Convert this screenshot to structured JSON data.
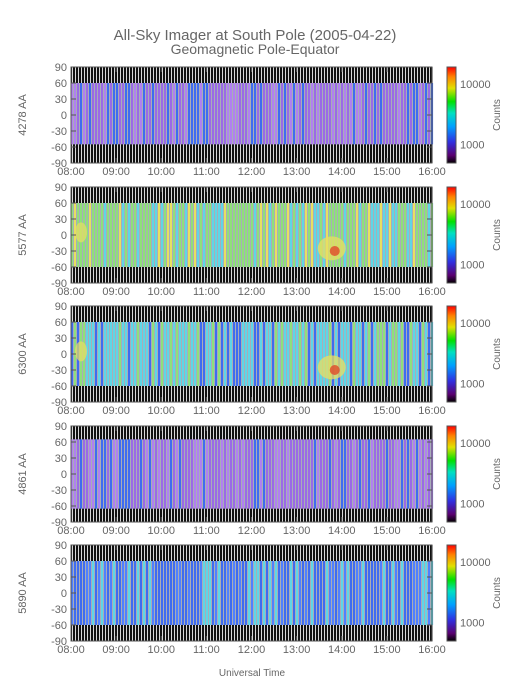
{
  "title": "All-Sky Imager at South Pole (2005-04-22)",
  "subtitle": "Geomagnetic Pole-Equator",
  "xlabel": "Universal Time",
  "colorbar_label": "Counts",
  "colorbar_ticks": [
    "10000",
    "1000"
  ],
  "colors": {
    "text": "#666666",
    "frame": "#555555",
    "dark": "#111111",
    "purple": "#9a6ae6",
    "blue": "#3f6cf0",
    "cyan": "#5fd6e6",
    "green": "#8fe07a",
    "yellow": "#e8e060",
    "red": "#e04a2a"
  },
  "chart_data": [
    {
      "type": "heatmap",
      "ylabel": "4278 AA",
      "x_ticks": [
        "08:00",
        "09:00",
        "10:00",
        "11:00",
        "12:00",
        "13:00",
        "14:00",
        "15:00",
        "16:00"
      ],
      "y_ticks": [
        90,
        60,
        30,
        0,
        -30,
        -60,
        -90
      ],
      "x_range": [
        "08:00",
        "16:00"
      ],
      "y_range": [
        -90,
        90
      ],
      "data_band": [
        -55,
        60
      ],
      "dominant_color": "purple"
    },
    {
      "type": "heatmap",
      "ylabel": "5577 AA",
      "x_ticks": [
        "08:00",
        "09:00",
        "10:00",
        "11:00",
        "12:00",
        "13:00",
        "14:00",
        "15:00",
        "16:00"
      ],
      "y_ticks": [
        90,
        60,
        30,
        0,
        -30,
        -60,
        -90
      ],
      "x_range": [
        "08:00",
        "16:00"
      ],
      "y_range": [
        -90,
        90
      ],
      "data_band": [
        -60,
        60
      ],
      "dominant_color": "green"
    },
    {
      "type": "heatmap",
      "ylabel": "6300 AA",
      "x_ticks": [
        "08:00",
        "09:00",
        "10:00",
        "11:00",
        "12:00",
        "13:00",
        "14:00",
        "15:00",
        "16:00"
      ],
      "y_ticks": [
        90,
        60,
        30,
        0,
        -30,
        -60,
        -90
      ],
      "x_range": [
        "08:00",
        "16:00"
      ],
      "y_range": [
        -90,
        90
      ],
      "data_band": [
        -60,
        60
      ],
      "dominant_color": "cyan"
    },
    {
      "type": "heatmap",
      "ylabel": "4861 AA",
      "x_ticks": [
        "08:00",
        "09:00",
        "10:00",
        "11:00",
        "12:00",
        "13:00",
        "14:00",
        "15:00",
        "16:00"
      ],
      "y_ticks": [
        90,
        60,
        30,
        0,
        -30,
        -60,
        -90
      ],
      "x_range": [
        "08:00",
        "16:00"
      ],
      "y_range": [
        -90,
        90
      ],
      "data_band": [
        -65,
        65
      ],
      "dominant_color": "purple"
    },
    {
      "type": "heatmap",
      "ylabel": "5890 AA",
      "x_ticks": [
        "08:00",
        "09:00",
        "10:00",
        "11:00",
        "12:00",
        "13:00",
        "14:00",
        "15:00",
        "16:00"
      ],
      "y_ticks": [
        90,
        60,
        30,
        0,
        -30,
        -60,
        -90
      ],
      "x_range": [
        "08:00",
        "16:00"
      ],
      "y_range": [
        -90,
        90
      ],
      "data_band": [
        -60,
        60
      ],
      "dominant_color": "blue"
    }
  ]
}
